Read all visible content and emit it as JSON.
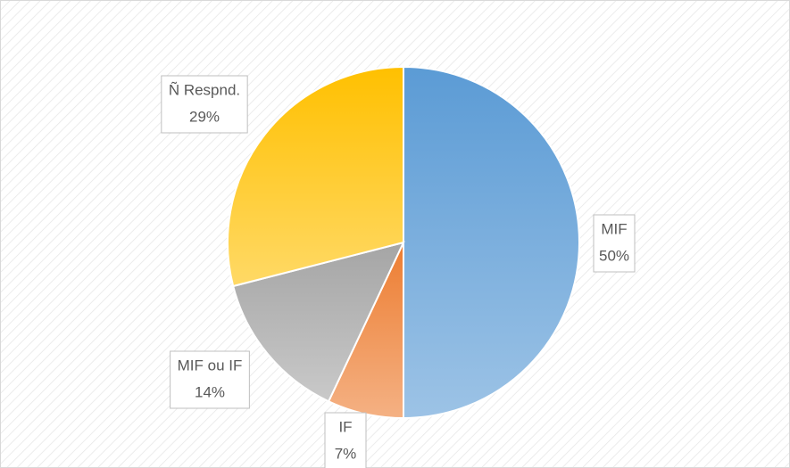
{
  "chart_data": {
    "type": "pie",
    "categories": [
      "MIF",
      "IF",
      "MIF ou IF",
      "Ñ Respnd."
    ],
    "values": [
      50,
      7,
      14,
      29
    ],
    "value_labels": [
      "50%",
      "7%",
      "14%",
      "29%"
    ],
    "colors": [
      "#5b9bd5",
      "#ed7d31",
      "#a5a5a5",
      "#ffc000"
    ]
  }
}
